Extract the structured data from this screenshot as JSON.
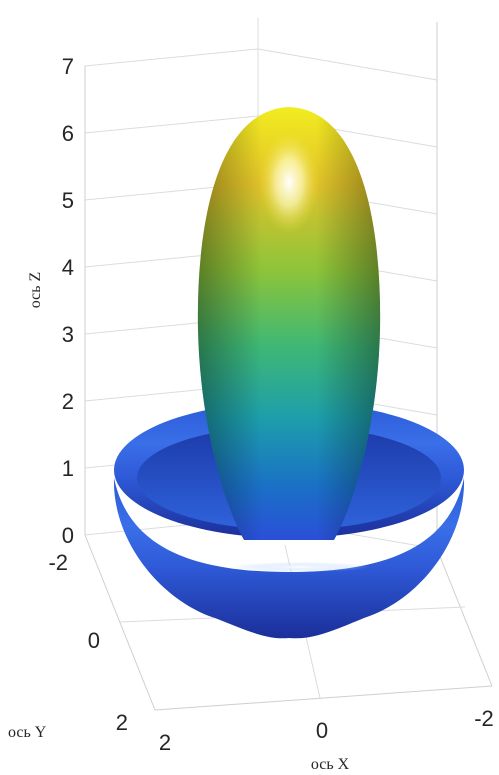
{
  "chart_data": {
    "type": "surface3d",
    "title": "",
    "xlabel": "ось X",
    "ylabel": "ось Y",
    "zlabel": "ось Z",
    "xlim": [
      -2,
      2
    ],
    "ylim": [
      -2,
      2
    ],
    "zlim": [
      0,
      7
    ],
    "x_ticks": [
      "2",
      "0",
      "-2"
    ],
    "y_ticks": [
      "-2",
      "0",
      "2"
    ],
    "z_ticks": [
      "0",
      "1",
      "2",
      "3",
      "4",
      "5",
      "6",
      "7"
    ],
    "grid": true,
    "colormap": "parula",
    "surface": {
      "description_shape": "radiation pattern: main vertical lobe plus toroidal side lobe",
      "main_lobe": {
        "z_min": 0,
        "z_max": 6,
        "max_radius": 1.0
      },
      "side_lobe": {
        "outer_radius": 2.0,
        "z_top": 1.0,
        "z_bottom": -1.5
      }
    }
  }
}
